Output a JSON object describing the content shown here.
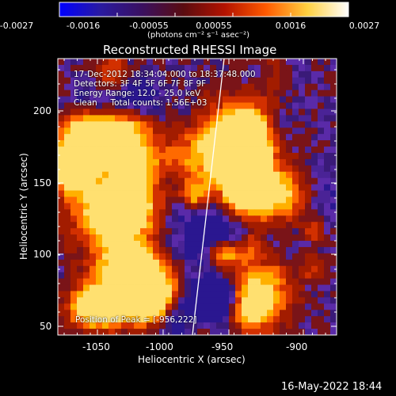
{
  "colorbar": {
    "ticks": [
      "-0.0027",
      "-0.0016",
      "-0.00055",
      "0.00055",
      "0.0016",
      "0.0027"
    ],
    "units": "(photons cm⁻² s⁻¹ asec⁻²)",
    "colors": [
      "#0000ff",
      "#2a1aa0",
      "#3a1060",
      "#5a0c10",
      "#b31200",
      "#ff5a00",
      "#ffd040",
      "#ffffff"
    ]
  },
  "plot": {
    "title": "Reconstructed RHESSI Image",
    "info_lines": [
      "17-Dec-2012 18:34:04.000 to 18:37:48.000",
      "Detectors: 3F 4F 5F 6F 7F 8F 9F",
      "Energy Range: 12.0 - 25.0 keV",
      "Clean     Total counts: 1.56E+03"
    ],
    "peak_label": "Position of Peak = [-956,222]",
    "xlabel": "Heliocentric X (arcsec)",
    "ylabel": "Heliocentric Y (arcsec)",
    "x_ticks": [
      "-1050",
      "-1000",
      "-950",
      "-900"
    ],
    "y_ticks": [
      "50",
      "100",
      "150",
      "200"
    ],
    "palette": [
      "#3a1a78",
      "#4a2396",
      "#5a2aa8",
      "#2a1790",
      "#7a1418",
      "#a21c00",
      "#d23000",
      "#ff6a00",
      "#ffb000",
      "#ffe070"
    ]
  },
  "footer": {
    "timestamp": "16-May-2022 18:44"
  }
}
